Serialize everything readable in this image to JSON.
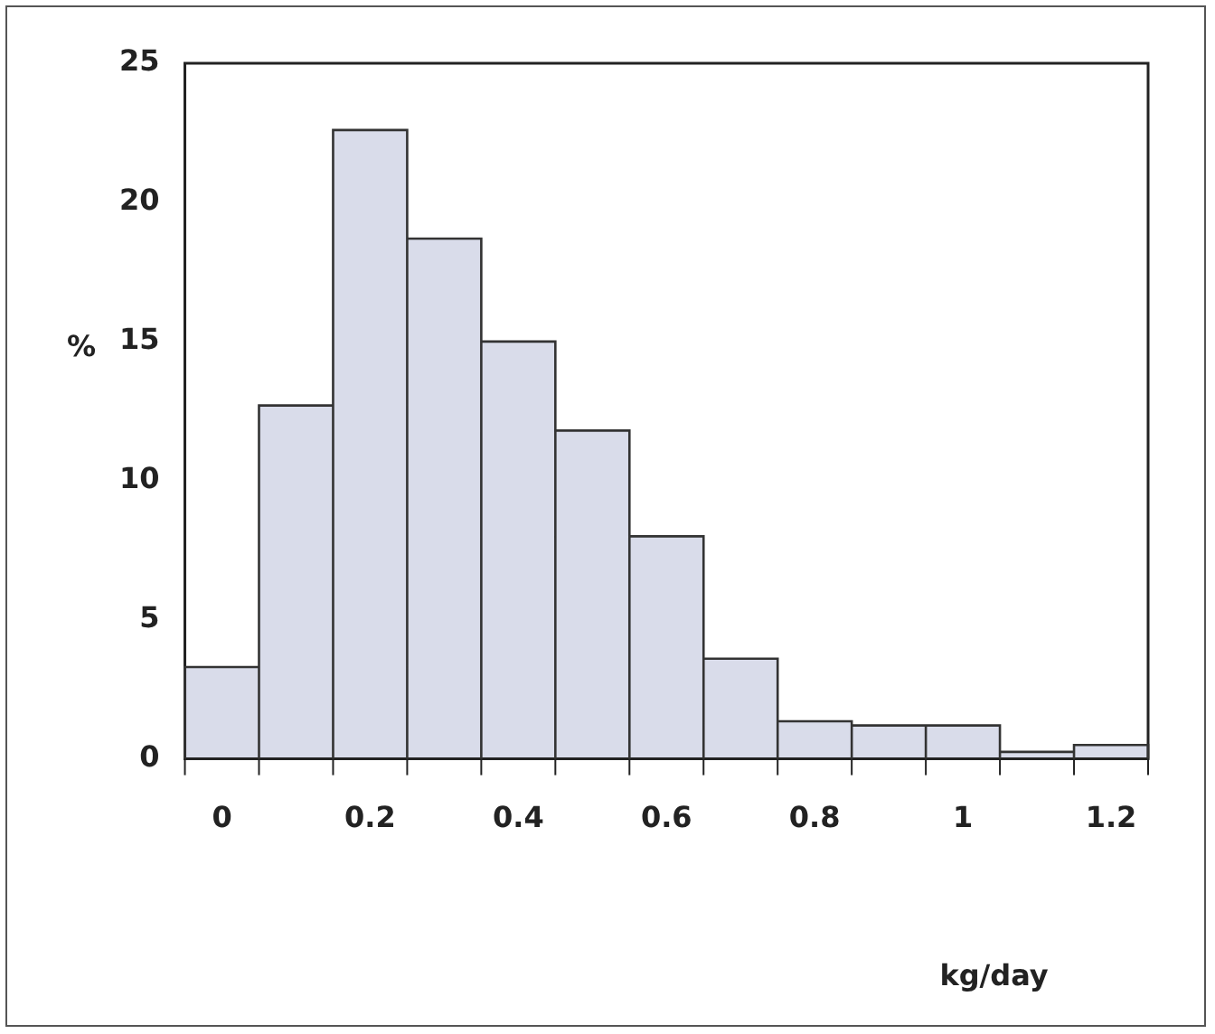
{
  "chart_data": {
    "type": "histogram",
    "xlabel": "kg/day",
    "ylabel": "%",
    "bins": [
      -0.05,
      0.05,
      0.15,
      0.25,
      0.35,
      0.45,
      0.55,
      0.65,
      0.75,
      0.85,
      0.95,
      1.05,
      1.15,
      1.25
    ],
    "values": [
      3.3,
      12.7,
      22.6,
      18.7,
      15.0,
      11.8,
      8.0,
      3.6,
      1.35,
      1.2,
      1.2,
      0.25,
      0.5
    ],
    "color": "#d9dcea",
    "xlim": [
      -0.05,
      1.25
    ],
    "xticks": [
      0,
      0.2,
      0.4,
      0.6,
      0.8,
      1,
      1.2
    ],
    "ylim": [
      0,
      25
    ],
    "yticks": [
      0,
      5,
      10,
      15,
      20,
      25
    ],
    "grid": false,
    "legend": false
  }
}
